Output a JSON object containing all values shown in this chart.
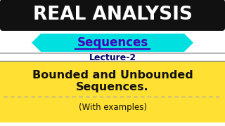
{
  "bg_color": "#ffffff",
  "top_box_color": "#111111",
  "top_text": "REAL ANALYSIS",
  "top_text_color": "#ffffff",
  "hexagon_color": "#00e0e0",
  "sequences_text": "Sequences",
  "sequences_text_color": "#4400bb",
  "lecture_text": "Lecture-2",
  "lecture_text_color": "#000066",
  "yellow_box_color": "#ffe033",
  "main_title_line1": "Bounded and Unbounded",
  "main_title_line2": "Sequences.",
  "main_title_color": "#111111",
  "sub_text": "(With examples)",
  "sub_text_color": "#111111",
  "divider_color": "#aaaaaa",
  "dashed_color": "#aaaaaa"
}
